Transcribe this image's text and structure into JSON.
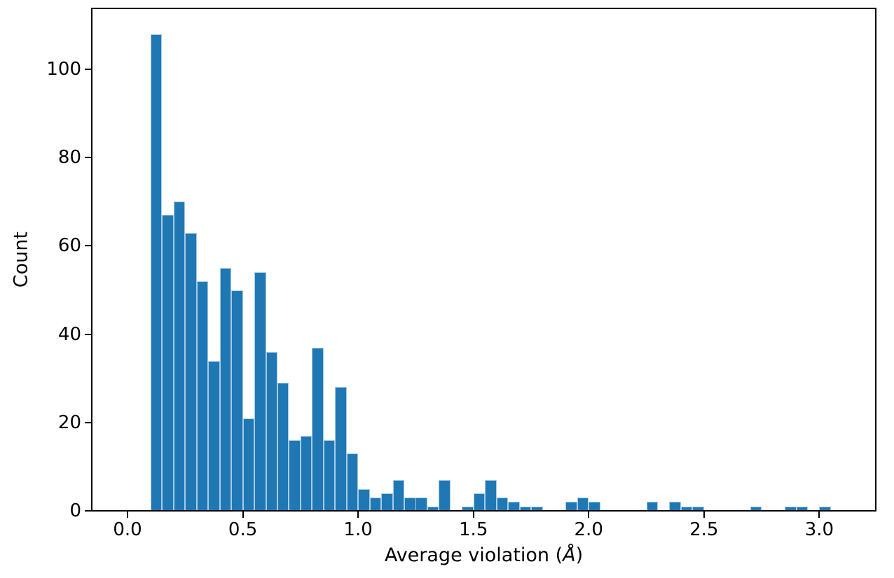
{
  "figure": {
    "background": "#ffffff",
    "bar_color": "#1f77b4",
    "bar_edge_color": "#a9cbe5",
    "axis_color": "#000000"
  },
  "chart_data": {
    "type": "bar",
    "subtype": "histogram",
    "title": "",
    "xlabel": "Average violation (Å)",
    "xlabel_parts": {
      "prefix": "Average violation (",
      "symbol": "Å",
      "suffix": ")"
    },
    "ylabel": "Count",
    "grid": false,
    "legend": null,
    "bin_width": 0.05,
    "bin_starts": [
      0.1,
      0.15,
      0.2,
      0.25,
      0.3,
      0.35,
      0.4,
      0.45,
      0.5,
      0.55,
      0.6,
      0.65,
      0.7,
      0.75,
      0.8,
      0.85,
      0.9,
      0.95,
      1.0,
      1.05,
      1.1,
      1.15,
      1.2,
      1.25,
      1.3,
      1.35,
      1.4,
      1.45,
      1.5,
      1.55,
      1.6,
      1.65,
      1.7,
      1.75,
      1.8,
      1.85,
      1.9,
      1.95,
      2.0,
      2.05,
      2.1,
      2.15,
      2.2,
      2.25,
      2.3,
      2.35,
      2.4,
      2.45,
      2.5,
      2.55,
      2.6,
      2.65,
      2.7,
      2.75,
      2.8,
      2.85,
      2.9,
      2.95,
      3.0
    ],
    "counts": [
      108,
      67,
      70,
      63,
      52,
      34,
      55,
      50,
      21,
      54,
      36,
      29,
      16,
      17,
      37,
      16,
      28,
      13,
      5,
      3,
      4,
      7,
      3,
      3,
      1,
      7,
      0,
      1,
      4,
      7,
      3,
      2,
      1,
      1,
      0,
      0,
      2,
      3,
      2,
      0,
      0,
      0,
      0,
      2,
      0,
      2,
      1,
      1,
      0,
      0,
      0,
      0,
      1,
      0,
      0,
      1,
      1,
      0,
      1
    ],
    "xlim": [
      -0.155,
      3.245
    ],
    "ylim": [
      0,
      113.8
    ],
    "xticks": [
      0.0,
      0.5,
      1.0,
      1.5,
      2.0,
      2.5,
      3.0
    ],
    "xtick_labels": [
      "0.0",
      "0.5",
      "1.0",
      "1.5",
      "2.0",
      "2.5",
      "3.0"
    ],
    "yticks": [
      0,
      20,
      40,
      60,
      80,
      100
    ],
    "ytick_labels": [
      "0",
      "20",
      "40",
      "60",
      "80",
      "100"
    ]
  }
}
